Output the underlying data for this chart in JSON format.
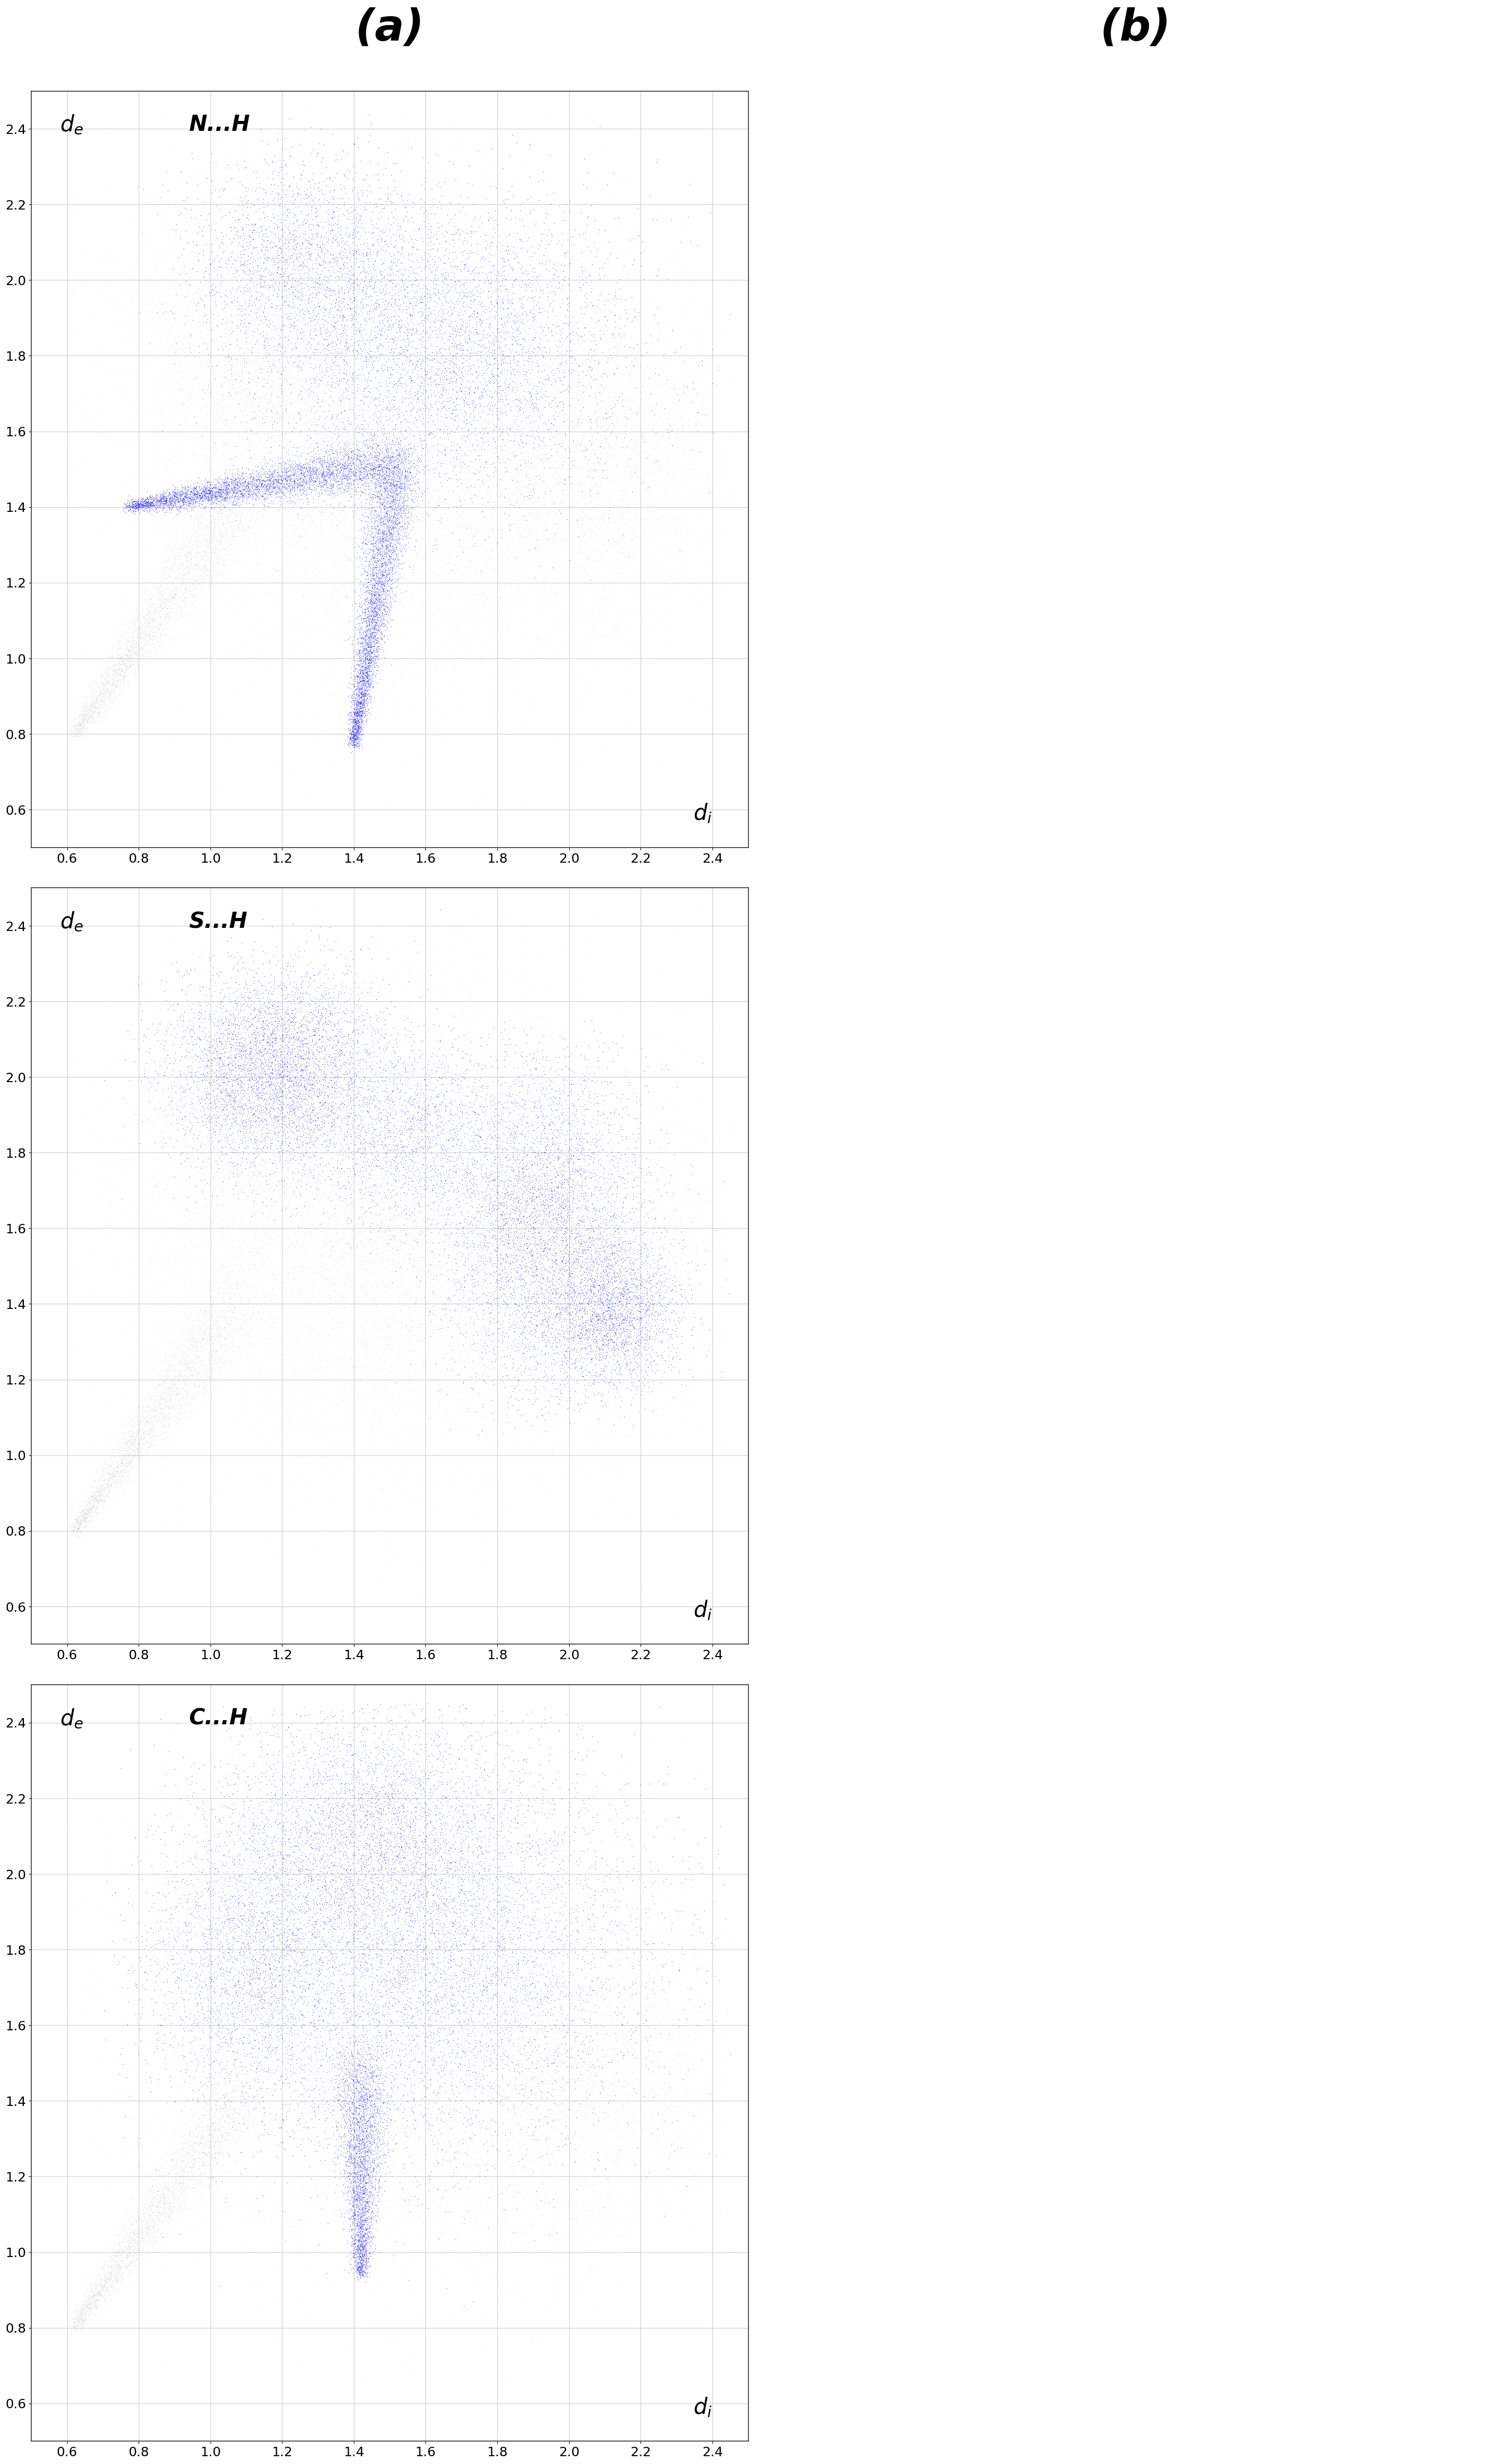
{
  "panel_a_label": "(a)",
  "panel_b_label": "(b)",
  "plots": [
    {
      "label": "N...H",
      "xlim": [
        0.5,
        2.5
      ],
      "ylim": [
        0.5,
        2.5
      ],
      "xticks": [
        0.6,
        0.8,
        1.0,
        1.2,
        1.4,
        1.6,
        1.8,
        2.0,
        2.2,
        2.4
      ],
      "yticks": [
        0.6,
        0.8,
        1.0,
        1.2,
        1.4,
        1.6,
        1.8,
        2.0,
        2.2,
        2.4
      ]
    },
    {
      "label": "S...H",
      "xlim": [
        0.5,
        2.5
      ],
      "ylim": [
        0.5,
        2.5
      ],
      "xticks": [
        0.6,
        0.8,
        1.0,
        1.2,
        1.4,
        1.6,
        1.8,
        2.0,
        2.2,
        2.4
      ],
      "yticks": [
        0.6,
        0.8,
        1.0,
        1.2,
        1.4,
        1.6,
        1.8,
        2.0,
        2.2,
        2.4
      ]
    },
    {
      "label": "C...H",
      "xlim": [
        0.5,
        2.5
      ],
      "ylim": [
        0.5,
        2.5
      ],
      "xticks": [
        0.6,
        0.8,
        1.0,
        1.2,
        1.4,
        1.6,
        1.8,
        2.0,
        2.2,
        2.4
      ],
      "yticks": [
        0.6,
        0.8,
        1.0,
        1.2,
        1.4,
        1.6,
        1.8,
        2.0,
        2.2,
        2.4
      ]
    }
  ],
  "gray_color": "#b0b0b0",
  "blue_color": "#0000ee",
  "background_color": "#ffffff",
  "grid_color": "#cccccc",
  "tick_fontsize": 18,
  "label_fontsize": 30,
  "panel_label_fontsize": 60
}
